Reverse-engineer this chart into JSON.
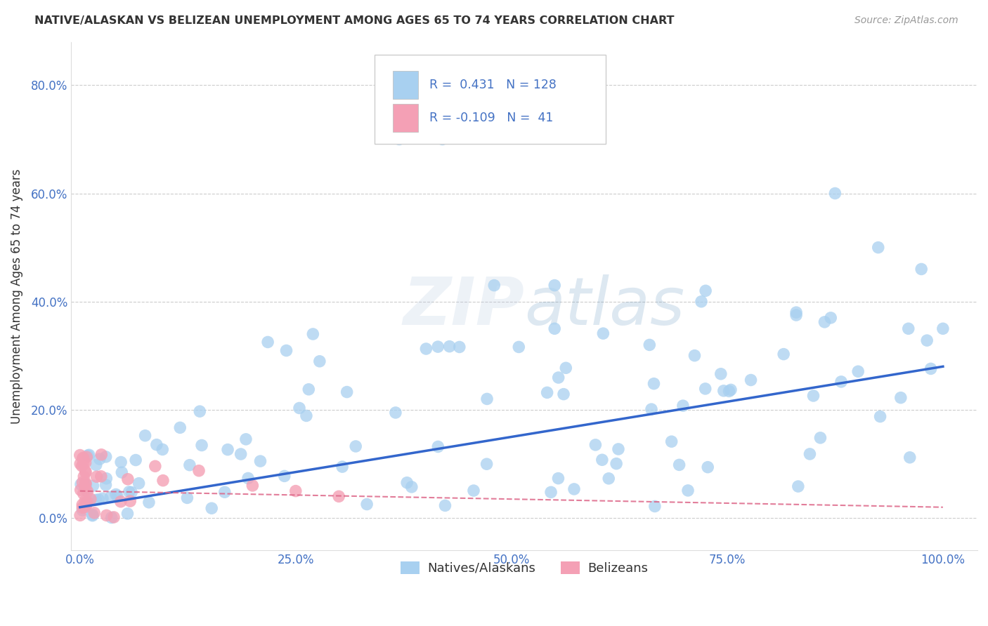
{
  "title": "NATIVE/ALASKAN VS BELIZEAN UNEMPLOYMENT AMONG AGES 65 TO 74 YEARS CORRELATION CHART",
  "source": "Source: ZipAtlas.com",
  "ylabel_label": "Unemployment Among Ages 65 to 74 years",
  "r_native": 0.431,
  "n_native": 128,
  "r_belizean": -0.109,
  "n_belizean": 41,
  "xtick_positions": [
    0.0,
    0.25,
    0.5,
    0.75,
    1.0
  ],
  "xtick_labels": [
    "0.0%",
    "25.0%",
    "50.0%",
    "75.0%",
    "100.0%"
  ],
  "ytick_positions": [
    0.0,
    0.2,
    0.4,
    0.6,
    0.8
  ],
  "ytick_labels": [
    "0.0%",
    "20.0%",
    "40.0%",
    "60.0%",
    "80.0%"
  ],
  "native_color": "#a8d0f0",
  "belizean_color": "#f4a0b5",
  "native_line_color": "#3366cc",
  "belizean_line_color": "#dd6688",
  "background_color": "#ffffff",
  "grid_color": "#cccccc",
  "native_line_x0": 0.0,
  "native_line_x1": 1.0,
  "native_line_y0": 0.02,
  "native_line_y1": 0.28,
  "belizean_line_x0": 0.0,
  "belizean_line_x1": 1.0,
  "belizean_line_y0": 0.05,
  "belizean_line_y1": 0.02,
  "xlim_min": -0.01,
  "xlim_max": 1.04,
  "ylim_min": -0.06,
  "ylim_max": 0.88
}
